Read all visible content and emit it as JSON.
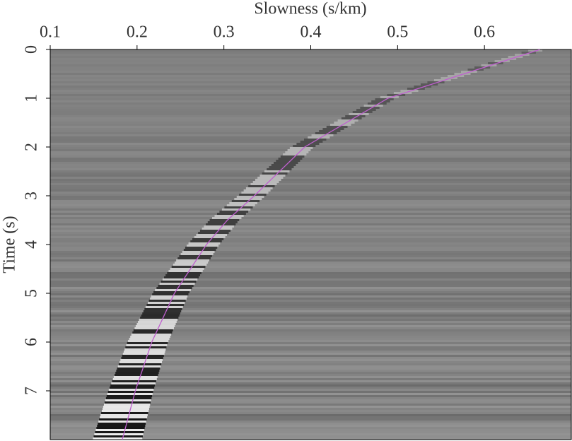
{
  "chart_data": {
    "type": "line",
    "title": "Slowness (s/km)",
    "y_label": "Time (s)",
    "xlim": [
      0.1,
      0.7
    ],
    "xticks": [
      0.1,
      0.2,
      0.3,
      0.4,
      0.5,
      0.6
    ],
    "ylim": [
      0,
      8
    ],
    "yticks": [
      0,
      1,
      2,
      3,
      4,
      5,
      6,
      7
    ],
    "y_inverted": true,
    "x_axis_position": "top",
    "series": [
      {
        "color": "#c060d0",
        "x": [
          0.664,
          0.489,
          0.393,
          0.335,
          0.304,
          0.28,
          0.243,
          0.217,
          0.198,
          0.183
        ],
        "values": [
          0,
          1,
          2,
          3,
          3.5,
          4,
          5,
          6,
          7,
          8
        ]
      }
    ]
  }
}
